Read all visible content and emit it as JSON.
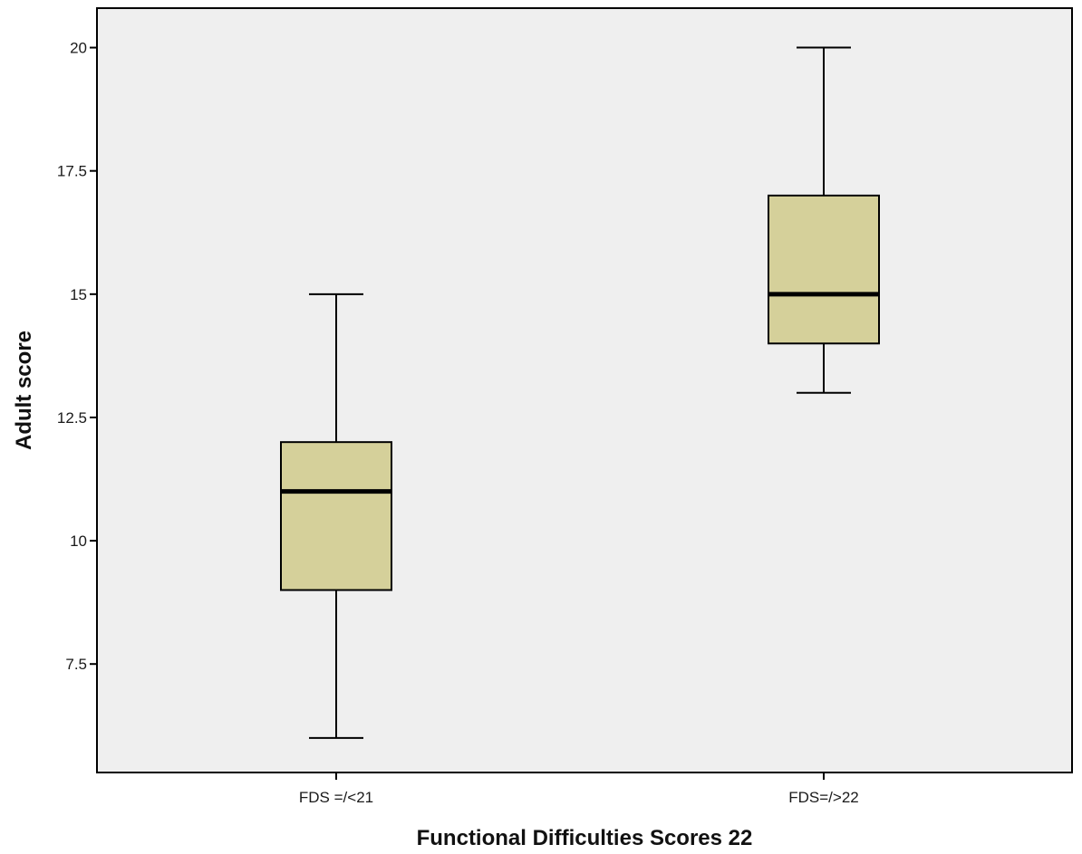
{
  "colors": {
    "plot_background": "#efefef",
    "box_fill": "#d5d09a",
    "stroke": "#000000"
  },
  "chart_data": {
    "type": "boxplot",
    "title": "",
    "xlabel": "Functional Difficulties Scores 22",
    "ylabel": "Adult score",
    "ylim": [
      5.3,
      20.8
    ],
    "y_ticks": [
      7.5,
      10,
      12.5,
      15,
      17.5,
      20
    ],
    "y_tick_labels": [
      "7.5",
      "10",
      "12.5",
      "15",
      "17.5",
      "20"
    ],
    "grid": false,
    "legend": "none",
    "categories": [
      "FDS =/<21",
      "FDS=/>22"
    ],
    "boxes": [
      {
        "category": "FDS =/<21",
        "min": 6,
        "q1": 9,
        "median": 11,
        "q3": 12,
        "max": 15
      },
      {
        "category": "FDS=/>22",
        "min": 13,
        "q1": 14,
        "median": 15,
        "q3": 17,
        "max": 20
      }
    ]
  }
}
